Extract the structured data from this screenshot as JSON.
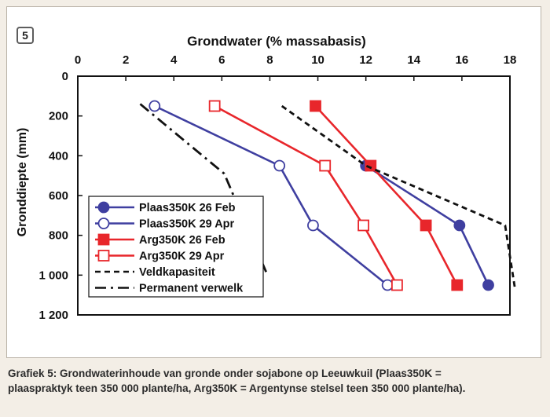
{
  "figure": {
    "number": "5",
    "caption_line1": "Grafiek 5: Grondwaterinhoude van gronde onder sojabone op Leeuwkuil (Plaas350K =",
    "caption_line2": "plaaspraktyk teen 350 000 plante/ha, Arg350K = Argentynse stelsel teen 350 000 plante/ha)."
  },
  "chart_data": {
    "type": "line",
    "title": "",
    "xlabel": "Grondwater (% massabasis)",
    "ylabel": "Gronddiepte (mm)",
    "xaxis_position": "top",
    "yaxis_inverted": true,
    "xlim": [
      0,
      18
    ],
    "ylim": [
      0,
      1200
    ],
    "x_ticks": [
      0,
      2,
      4,
      6,
      8,
      10,
      12,
      14,
      16,
      18
    ],
    "x_tick_labels": [
      "0",
      "2",
      "4",
      "6",
      "8",
      "10",
      "12",
      "14",
      "16",
      "18"
    ],
    "y_ticks": [
      0,
      200,
      400,
      600,
      800,
      1000,
      1200
    ],
    "y_tick_labels": [
      "0",
      "200",
      "400",
      "600",
      "800",
      "1 000",
      "1 200"
    ],
    "grid": false,
    "legend_position": "bottom-left",
    "series": [
      {
        "name": "Plaas350K 26 Feb",
        "color": "#3f3fa0",
        "marker": "circle-filled",
        "dash": "solid",
        "points": [
          [
            12.0,
            450
          ],
          [
            15.9,
            750
          ],
          [
            17.1,
            1050
          ]
        ]
      },
      {
        "name": "Plaas350K 29 Apr",
        "color": "#3f3fa0",
        "marker": "circle-open",
        "dash": "solid",
        "points": [
          [
            3.2,
            150
          ],
          [
            8.4,
            450
          ],
          [
            9.8,
            750
          ],
          [
            12.9,
            1050
          ]
        ]
      },
      {
        "name": "Arg350K 26 Feb",
        "color": "#e8262b",
        "marker": "square-filled",
        "dash": "solid",
        "points": [
          [
            9.9,
            150
          ],
          [
            12.2,
            450
          ],
          [
            14.5,
            750
          ],
          [
            15.8,
            1050
          ]
        ]
      },
      {
        "name": "Arg350K 29 Apr",
        "color": "#e8262b",
        "marker": "square-open",
        "dash": "solid",
        "points": [
          [
            5.7,
            150
          ],
          [
            10.3,
            450
          ],
          [
            11.9,
            750
          ],
          [
            13.3,
            1050
          ]
        ]
      },
      {
        "name": "Veldkapasiteit",
        "color": "#111111",
        "marker": "none",
        "dash": "dash",
        "points": [
          [
            8.5,
            150
          ],
          [
            12.0,
            450
          ],
          [
            17.8,
            750
          ],
          [
            18.2,
            1060
          ]
        ]
      },
      {
        "name": "Permanent verwelk",
        "color": "#111111",
        "marker": "none",
        "dash": "dashdot",
        "points": [
          [
            2.6,
            140
          ],
          [
            6.1,
            490
          ],
          [
            7.9,
            1000
          ]
        ]
      }
    ]
  }
}
